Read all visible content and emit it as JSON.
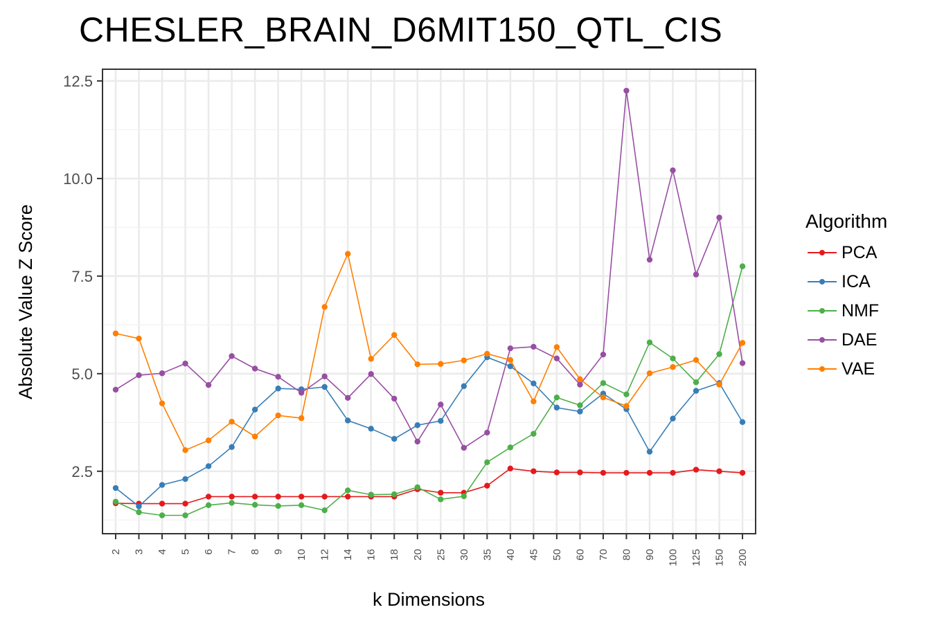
{
  "chart_data": {
    "type": "line",
    "title": "CHESLER_BRAIN_D6MIT150_QTL_CIS",
    "xlabel": "k Dimensions",
    "ylabel": "Absolute Value Z Score",
    "categories": [
      "2",
      "3",
      "4",
      "5",
      "6",
      "7",
      "8",
      "9",
      "10",
      "12",
      "14",
      "16",
      "18",
      "20",
      "25",
      "30",
      "35",
      "40",
      "45",
      "50",
      "60",
      "70",
      "80",
      "90",
      "100",
      "125",
      "150",
      "200"
    ],
    "ylim": [
      0.9,
      12.8
    ],
    "yticks": [
      2.5,
      5.0,
      7.5,
      10.0,
      12.5
    ],
    "ytick_labels": [
      "2.5",
      "5.0",
      "7.5",
      "10.0",
      "12.5"
    ],
    "grid": true,
    "legend_title": "Algorithm",
    "legend_position": "right",
    "series": [
      {
        "name": "PCA",
        "color": "#E41A1C",
        "values": [
          1.68,
          1.67,
          1.67,
          1.67,
          1.85,
          1.85,
          1.85,
          1.85,
          1.85,
          1.85,
          1.85,
          1.85,
          1.85,
          2.04,
          1.95,
          1.95,
          2.13,
          2.57,
          2.5,
          2.47,
          2.47,
          2.46,
          2.46,
          2.46,
          2.46,
          2.54,
          2.5,
          2.46
        ]
      },
      {
        "name": "ICA",
        "color": "#377EB8",
        "values": [
          2.07,
          1.6,
          2.15,
          2.3,
          2.63,
          3.12,
          4.08,
          4.62,
          4.6,
          4.66,
          3.8,
          3.59,
          3.33,
          3.68,
          3.79,
          4.68,
          5.42,
          5.19,
          4.75,
          4.13,
          4.03,
          4.49,
          4.09,
          3.0,
          3.85,
          4.56,
          4.76,
          3.76
        ]
      },
      {
        "name": "NMF",
        "color": "#4DAF4A",
        "values": [
          1.72,
          1.45,
          1.37,
          1.37,
          1.63,
          1.69,
          1.64,
          1.61,
          1.63,
          1.5,
          2.01,
          1.9,
          1.91,
          2.09,
          1.78,
          1.86,
          2.73,
          3.11,
          3.46,
          4.39,
          4.19,
          4.76,
          4.47,
          5.8,
          5.39,
          4.78,
          5.5,
          7.75
        ]
      },
      {
        "name": "DAE",
        "color": "#984EA3",
        "values": [
          4.59,
          4.96,
          5.01,
          5.26,
          4.71,
          5.45,
          5.13,
          4.92,
          4.51,
          4.93,
          4.38,
          4.99,
          4.36,
          3.26,
          4.21,
          3.1,
          3.49,
          5.65,
          5.69,
          5.39,
          4.72,
          5.49,
          12.25,
          7.92,
          10.21,
          7.54,
          9.0,
          5.27
        ]
      },
      {
        "name": "VAE",
        "color": "#FF7F00",
        "values": [
          6.03,
          5.9,
          4.24,
          3.04,
          3.29,
          3.77,
          3.39,
          3.93,
          3.86,
          6.71,
          8.07,
          5.38,
          5.99,
          5.24,
          5.25,
          5.34,
          5.51,
          5.35,
          4.29,
          5.68,
          4.86,
          4.39,
          4.17,
          5.01,
          5.17,
          5.35,
          4.72,
          5.79
        ]
      }
    ]
  }
}
